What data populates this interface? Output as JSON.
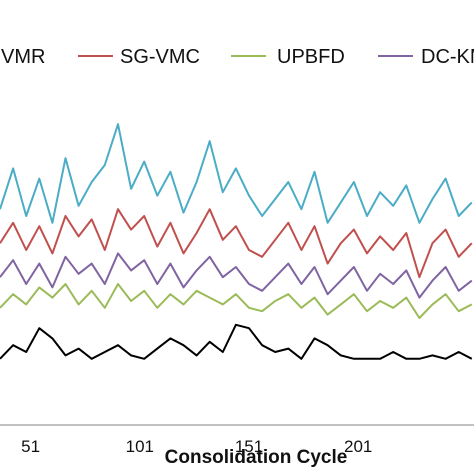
{
  "chart_data": {
    "type": "line",
    "xlabel": "Consolidation Cycle",
    "ylabel": "",
    "title": "",
    "x_ticks": [
      "51",
      "101",
      "151",
      "201"
    ],
    "xlim": [
      37,
      254
    ],
    "ylim": [
      0,
      100
    ],
    "grid": false,
    "legend_position": "top",
    "legend": [
      {
        "key": "vmr",
        "label": "VMR",
        "color": "#4BACC6"
      },
      {
        "key": "sgvmc",
        "label": "SG-VMC",
        "color": "#C0504D"
      },
      {
        "key": "upbfd",
        "label": "UPBFD",
        "color": "#9BBB59"
      },
      {
        "key": "dckm",
        "label": "DC-KM",
        "color": "#8064A2"
      }
    ],
    "series": [
      {
        "name": "VMR",
        "color": "#4BACC6",
        "x": [
          37,
          43,
          49,
          55,
          61,
          67,
          73,
          79,
          85,
          91,
          97,
          103,
          109,
          115,
          121,
          127,
          133,
          139,
          145,
          151,
          157,
          163,
          169,
          175,
          181,
          187,
          193,
          199,
          205,
          211,
          217,
          223,
          229,
          235,
          241,
          247,
          253
        ],
        "values": [
          62,
          74,
          60,
          71,
          58,
          77,
          63,
          70,
          75,
          87,
          68,
          76,
          66,
          73,
          61,
          70,
          82,
          67,
          74,
          66,
          60,
          65,
          70,
          62,
          73,
          58,
          64,
          70,
          60,
          67,
          63,
          69,
          58,
          65,
          71,
          60,
          64
        ]
      },
      {
        "name": "SG-VMC",
        "color": "#C0504D",
        "x": [
          37,
          43,
          49,
          55,
          61,
          67,
          73,
          79,
          85,
          91,
          97,
          103,
          109,
          115,
          121,
          127,
          133,
          139,
          145,
          151,
          157,
          163,
          169,
          175,
          181,
          187,
          193,
          199,
          205,
          211,
          217,
          223,
          229,
          235,
          241,
          247,
          253
        ],
        "values": [
          52,
          58,
          50,
          57,
          49,
          60,
          54,
          59,
          50,
          62,
          56,
          60,
          51,
          58,
          49,
          55,
          62,
          53,
          57,
          50,
          48,
          53,
          58,
          50,
          57,
          46,
          52,
          56,
          49,
          54,
          50,
          55,
          42,
          52,
          56,
          48,
          52
        ]
      },
      {
        "name": "UPBFD",
        "color": "#9BBB59",
        "x": [
          37,
          43,
          49,
          55,
          61,
          67,
          73,
          79,
          85,
          91,
          97,
          103,
          109,
          115,
          121,
          127,
          133,
          139,
          145,
          151,
          157,
          163,
          169,
          175,
          181,
          187,
          193,
          199,
          205,
          211,
          217,
          223,
          229,
          235,
          241,
          247,
          253
        ],
        "values": [
          33,
          37,
          34,
          39,
          36,
          40,
          34,
          38,
          33,
          40,
          35,
          38,
          33,
          37,
          34,
          38,
          36,
          34,
          37,
          33,
          32,
          35,
          37,
          33,
          36,
          31,
          34,
          37,
          32,
          35,
          33,
          36,
          30,
          34,
          37,
          32,
          34
        ]
      },
      {
        "name": "DC-KM",
        "color": "#8064A2",
        "x": [
          37,
          43,
          49,
          55,
          61,
          67,
          73,
          79,
          85,
          91,
          97,
          103,
          109,
          115,
          121,
          127,
          133,
          139,
          145,
          151,
          157,
          163,
          169,
          175,
          181,
          187,
          193,
          199,
          205,
          211,
          217,
          223,
          229,
          235,
          241,
          247,
          253
        ],
        "values": [
          42,
          47,
          40,
          46,
          39,
          48,
          43,
          46,
          40,
          49,
          44,
          47,
          40,
          46,
          39,
          44,
          48,
          42,
          45,
          40,
          38,
          42,
          46,
          40,
          45,
          37,
          41,
          45,
          38,
          43,
          40,
          44,
          36,
          41,
          45,
          38,
          41
        ]
      },
      {
        "name": "",
        "color": "#000000",
        "x": [
          37,
          43,
          49,
          55,
          61,
          67,
          73,
          79,
          85,
          91,
          97,
          103,
          109,
          115,
          121,
          127,
          133,
          139,
          145,
          151,
          157,
          163,
          169,
          175,
          181,
          187,
          193,
          199,
          205,
          211,
          217,
          223,
          229,
          235,
          241,
          247,
          253
        ],
        "values": [
          18,
          22,
          20,
          27,
          24,
          19,
          21,
          18,
          20,
          22,
          19,
          18,
          21,
          24,
          22,
          19,
          23,
          20,
          28,
          27,
          22,
          20,
          21,
          18,
          24,
          22,
          19,
          18,
          18,
          18,
          20,
          18,
          18,
          19,
          18,
          20,
          18
        ]
      }
    ]
  }
}
